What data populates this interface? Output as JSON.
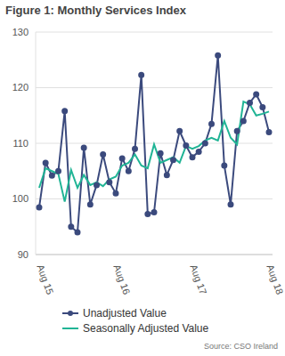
{
  "chart_data": {
    "type": "line",
    "title": "Figure 1: Monthly Services Index",
    "source": "Source: CSO Ireland",
    "categories": [
      "Aug 15",
      null,
      null,
      null,
      null,
      null,
      null,
      null,
      null,
      null,
      null,
      null,
      "Aug 16",
      null,
      null,
      null,
      null,
      null,
      null,
      null,
      null,
      null,
      null,
      null,
      "Aug 17",
      null,
      null,
      null,
      null,
      null,
      null,
      null,
      null,
      null,
      null,
      null,
      "Aug 18"
    ],
    "series": [
      {
        "name": "Unadjusted Value",
        "color": "#3b4a7d",
        "marker": "circle",
        "values": [
          98.5,
          106.5,
          104.2,
          105,
          115.8,
          95,
          94,
          109.2,
          99,
          102.5,
          108,
          103,
          101,
          107.3,
          105,
          109,
          122.3,
          97.3,
          97.6,
          108.2,
          104.3,
          107,
          112.2,
          109.6,
          107.5,
          108.5,
          110,
          113.5,
          125.8,
          106,
          99,
          112.2,
          114,
          117.3,
          118.8,
          116.5,
          112
        ]
      },
      {
        "name": "Seasonally Adjusted Value",
        "color": "#20b495",
        "marker": "none",
        "values": [
          102,
          105.5,
          105,
          104.5,
          99.5,
          105.2,
          102,
          104.3,
          102.5,
          103,
          102.3,
          103.5,
          104,
          106,
          106.5,
          108,
          106,
          105.5,
          109.8,
          106.5,
          107,
          107.5,
          106.5,
          109.5,
          109,
          109.5,
          110.5,
          111,
          110.5,
          114,
          111,
          109.8,
          117.5,
          117,
          115,
          115.3,
          115.7
        ]
      }
    ],
    "ylim": [
      90,
      130
    ],
    "yticks": [
      90,
      100,
      110,
      120,
      130
    ],
    "grid": true,
    "legend": "bottom"
  }
}
